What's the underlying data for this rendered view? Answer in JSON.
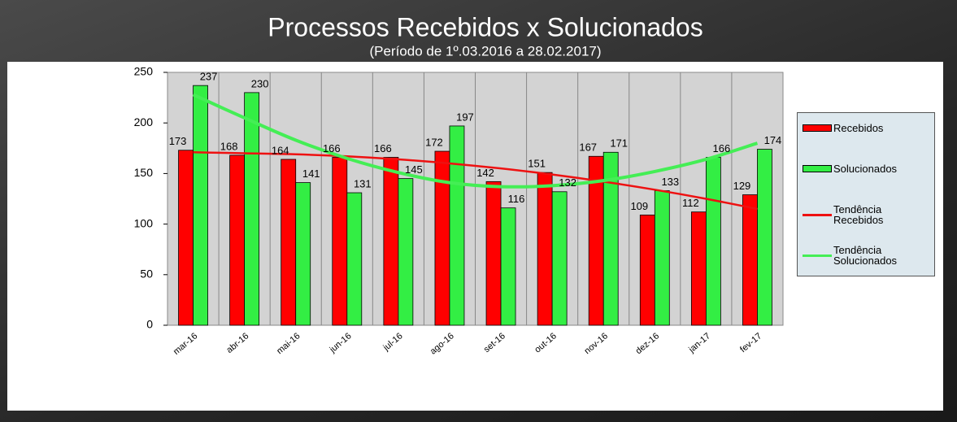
{
  "chart_data": {
    "type": "bar",
    "title": "Processos Recebidos x Solucionados",
    "subtitle": "(Período de 1º.03.2016  a  28.02.2017)",
    "categories": [
      "mar-16",
      "abr-16",
      "mai-16",
      "jun-16",
      "jul-16",
      "ago-16",
      "set-16",
      "out-16",
      "nov-16",
      "dez-16",
      "jan-17",
      "fev-17"
    ],
    "series": [
      {
        "name": "Recebidos",
        "color": "#ff0000",
        "values": [
          173,
          168,
          164,
          166,
          166,
          172,
          142,
          151,
          167,
          109,
          112,
          129
        ]
      },
      {
        "name": "Solucionados",
        "color": "#33ee44",
        "values": [
          237,
          230,
          141,
          131,
          145,
          197,
          116,
          132,
          171,
          133,
          166,
          174
        ]
      },
      {
        "name": "Tendência Recebidos",
        "color": "#ee1111",
        "type": "line",
        "values": [
          171,
          170,
          169,
          167,
          164,
          160,
          155,
          149,
          142,
          134,
          125,
          115
        ]
      },
      {
        "name": "Tendência Solucionados",
        "color": "#44ee55",
        "type": "line",
        "values": [
          228,
          205,
          183,
          165,
          151,
          141,
          137,
          138,
          143,
          152,
          164,
          180
        ]
      }
    ],
    "ylim": [
      0,
      250
    ],
    "yticks": [
      0,
      50,
      100,
      150,
      200,
      250
    ],
    "grid": false,
    "legend": "right"
  }
}
